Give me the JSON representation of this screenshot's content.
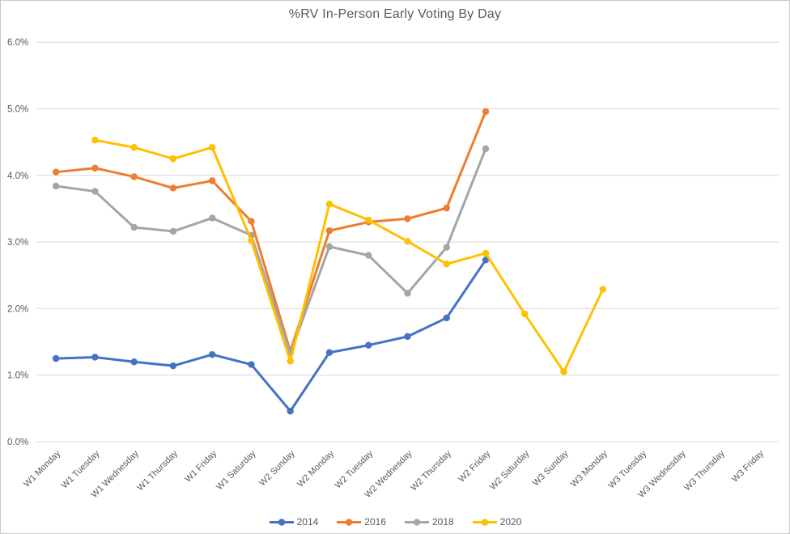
{
  "chart_data": {
    "type": "line",
    "title": "%RV In-Person Early Voting By Day",
    "xlabel": "",
    "ylabel": "",
    "ylim": [
      0,
      6
    ],
    "ytick_labels": [
      "0.0%",
      "1.0%",
      "2.0%",
      "3.0%",
      "4.0%",
      "5.0%",
      "6.0%"
    ],
    "grid": true,
    "legend_position": "bottom",
    "categories": [
      "W1 Monday",
      "W1 Tuesday",
      "W1 Wednesday",
      "W1 Thursday",
      "W1 Friday",
      "W1 Saturday",
      "W2 Sunday",
      "W2 Monday",
      "W2 Tuesday",
      "W2 Wednesday",
      "W2 Thursday",
      "W2 Friday",
      "W2 Saturday",
      "W3 Sunday",
      "W3 Monday",
      "W3 Tuesday",
      "W3 Wednesday",
      "W3 Thursday",
      "W3 Friday"
    ],
    "series": [
      {
        "name": "2014",
        "color": "#4472C4",
        "values": [
          1.25,
          1.27,
          1.2,
          1.14,
          1.31,
          1.16,
          0.46,
          1.34,
          1.45,
          1.58,
          1.86,
          2.73,
          null,
          null,
          null,
          null,
          null,
          null,
          null
        ]
      },
      {
        "name": "2016",
        "color": "#ED7D31",
        "values": [
          4.05,
          4.11,
          3.98,
          3.81,
          3.92,
          3.31,
          1.36,
          3.17,
          3.3,
          3.35,
          3.51,
          4.96,
          null,
          null,
          null,
          null,
          null,
          null,
          null
        ]
      },
      {
        "name": "2018",
        "color": "#A5A5A5",
        "values": [
          3.84,
          3.76,
          3.22,
          3.16,
          3.36,
          3.1,
          1.33,
          2.93,
          2.8,
          2.23,
          2.92,
          4.4,
          null,
          null,
          null,
          null,
          null,
          null,
          null
        ]
      },
      {
        "name": "2020",
        "color": "#FFC000",
        "values": [
          null,
          4.53,
          4.42,
          4.25,
          4.42,
          3.02,
          1.21,
          3.57,
          3.33,
          3.01,
          2.67,
          2.83,
          1.92,
          1.05,
          2.29,
          null,
          null,
          null,
          null
        ]
      }
    ],
    "colors": {
      "gridline": "#D9D9D9",
      "axis_text": "#595959",
      "title_text": "#595959"
    }
  }
}
